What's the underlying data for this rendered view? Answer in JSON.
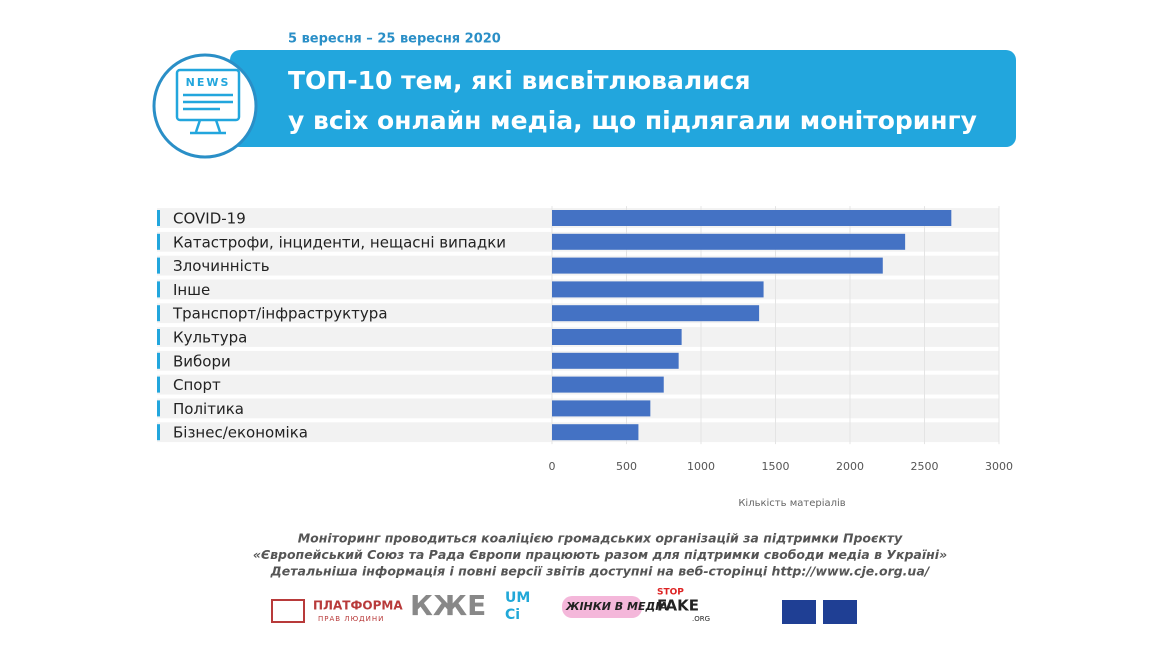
{
  "date": "5 вересня – 25 вересня 2020",
  "icon_text": "NEWS",
  "chart_data": {
    "type": "hbar",
    "title": [
      "ТОП-10 тем, які висвітлювалися",
      "у всіх онлайн медіа, що підлягали моніторингу"
    ],
    "categories": [
      "COVID-19",
      "Катастрофи, інциденти, нещасні випадки",
      "Злочинність",
      "Інше",
      "Транспорт/інфраструктура",
      "Культура",
      "Вибори",
      "Спорт",
      "Політика",
      "Бізнес/економіка"
    ],
    "values": [
      2680,
      2370,
      2220,
      1420,
      1390,
      870,
      850,
      750,
      660,
      580
    ],
    "color": "#4472c4",
    "xlim": [
      0,
      3000
    ],
    "xticks": [
      0,
      500,
      1000,
      1500,
      2000,
      2500,
      3000
    ],
    "xlabel": "Кількість матеріалів",
    "grid": true
  },
  "footer": {
    "lines": [
      "Моніторинг проводиться коаліцією громадських організацій за підтримки Проєкту",
      "«Європейський Союз та Рада Європи працюють разом для підтримки свободи медіа в Україні»",
      "Детальніша інформація і повні версії звітів доступні на веб-сторінці http://www.cje.org.ua/"
    ],
    "logos": [
      "ПЛАТФОРМА",
      "ПРАВ ЛЮДИНИ",
      "КЖЕ",
      "UM",
      "Ci",
      "ЖІНКИ В МЕДІА",
      "STOP",
      "FAKE",
      ".ORG"
    ]
  }
}
